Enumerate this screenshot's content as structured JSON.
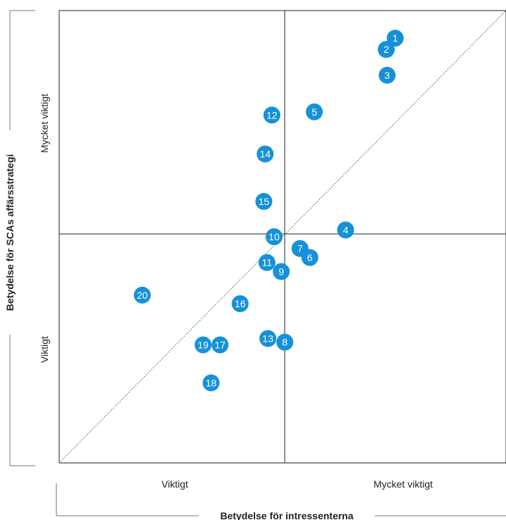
{
  "chart_data": {
    "type": "scatter",
    "x_axis_title": "Betydelse för intressenterna",
    "y_axis_title": "Betydelse för SCAs affärsstrategi",
    "x_tick_labels": [
      "Viktigt",
      "Mycket viktigt"
    ],
    "y_tick_labels": [
      "Viktigt",
      "Mycket viktigt"
    ],
    "xlim": [
      0,
      1
    ],
    "ylim": [
      0,
      1
    ],
    "quadrant_lines": true,
    "diagonal_reference_line": true,
    "point_color": "#1691d9",
    "points": [
      {
        "label": "1",
        "x": 0.752,
        "y": 0.939
      },
      {
        "label": "2",
        "x": 0.732,
        "y": 0.914
      },
      {
        "label": "3",
        "x": 0.734,
        "y": 0.857
      },
      {
        "label": "4",
        "x": 0.641,
        "y": 0.515
      },
      {
        "label": "5",
        "x": 0.571,
        "y": 0.776
      },
      {
        "label": "6",
        "x": 0.561,
        "y": 0.454
      },
      {
        "label": "7",
        "x": 0.539,
        "y": 0.474
      },
      {
        "label": "8",
        "x": 0.505,
        "y": 0.267
      },
      {
        "label": "9",
        "x": 0.497,
        "y": 0.423
      },
      {
        "label": "10",
        "x": 0.481,
        "y": 0.5
      },
      {
        "label": "11",
        "x": 0.465,
        "y": 0.443
      },
      {
        "label": "12",
        "x": 0.476,
        "y": 0.769
      },
      {
        "label": "13",
        "x": 0.467,
        "y": 0.275
      },
      {
        "label": "14",
        "x": 0.461,
        "y": 0.683
      },
      {
        "label": "15",
        "x": 0.458,
        "y": 0.578
      },
      {
        "label": "16",
        "x": 0.405,
        "y": 0.352
      },
      {
        "label": "17",
        "x": 0.36,
        "y": 0.261
      },
      {
        "label": "18",
        "x": 0.34,
        "y": 0.177
      },
      {
        "label": "19",
        "x": 0.322,
        "y": 0.261
      },
      {
        "label": "20",
        "x": 0.186,
        "y": 0.371
      }
    ]
  }
}
